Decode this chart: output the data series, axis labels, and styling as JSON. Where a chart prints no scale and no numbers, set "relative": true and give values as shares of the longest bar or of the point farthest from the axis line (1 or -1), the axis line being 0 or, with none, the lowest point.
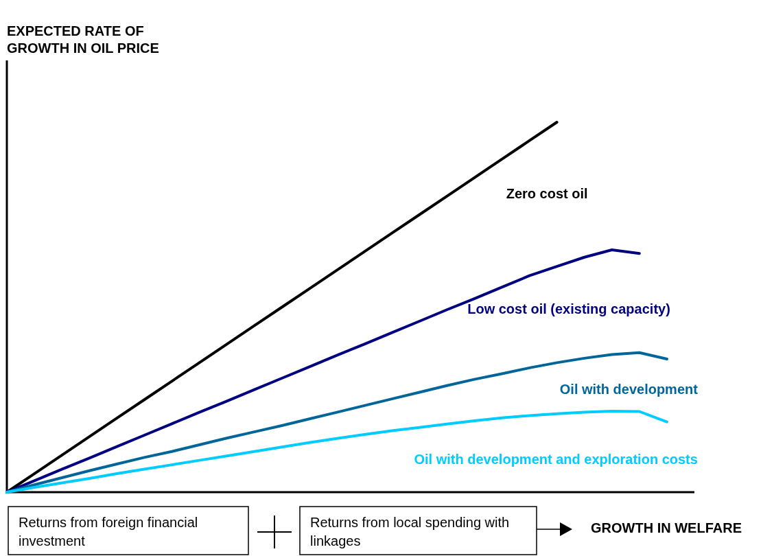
{
  "chart_data": {
    "type": "line",
    "relative": true,
    "ylabel": "EXPECTED RATE OF GROWTH IN OIL PRICE",
    "xlabel": "GROWTH IN WELFARE",
    "annotations": [
      "Returns from foreign financial investment",
      "Returns from local spending with linkages"
    ],
    "categories": [
      null,
      null,
      null,
      null,
      null,
      null,
      null,
      null,
      null,
      null,
      null,
      null,
      null,
      null,
      null,
      null,
      null,
      null,
      null,
      null,
      null,
      null,
      null,
      null,
      null
    ],
    "series": [
      {
        "name": "Zero cost oil",
        "color": "#000000",
        "values": [
          0,
          0.05,
          0.1,
          0.15,
          0.2,
          0.25,
          0.3,
          0.35,
          0.4,
          0.45,
          0.5,
          0.55,
          0.6,
          0.65,
          0.7,
          0.75,
          0.8,
          0.85,
          0.9,
          0.95,
          1,
          null,
          null,
          null,
          null
        ]
      },
      {
        "name": "Low cost oil (existing capacity)",
        "color": "#000080",
        "values": [
          0,
          0.031,
          0.062,
          0.092,
          0.123,
          0.154,
          0.185,
          0.216,
          0.246,
          0.277,
          0.308,
          0.339,
          0.37,
          0.4,
          0.431,
          0.462,
          0.493,
          0.523,
          0.554,
          0.585,
          0.61,
          0.635,
          0.655,
          0.645,
          null
        ]
      },
      {
        "name": "Oil with development",
        "color": "#006699",
        "values": [
          0,
          0.02,
          0.039,
          0.058,
          0.076,
          0.094,
          0.11,
          0.128,
          0.146,
          0.163,
          0.18,
          0.198,
          0.216,
          0.234,
          0.252,
          0.27,
          0.288,
          0.305,
          0.32,
          0.336,
          0.35,
          0.362,
          0.372,
          0.377,
          0.36
        ]
      },
      {
        "name": "Oil with development and exploration costs",
        "color": "#00ccff",
        "values": [
          0,
          0.013,
          0.025,
          0.037,
          0.05,
          0.062,
          0.074,
          0.086,
          0.098,
          0.11,
          0.122,
          0.134,
          0.145,
          0.156,
          0.166,
          0.175,
          0.184,
          0.193,
          0.201,
          0.207,
          0.212,
          0.216,
          0.219,
          0.218,
          0.19
        ]
      }
    ],
    "legend": false,
    "marker": "none",
    "line_style": "solid"
  }
}
